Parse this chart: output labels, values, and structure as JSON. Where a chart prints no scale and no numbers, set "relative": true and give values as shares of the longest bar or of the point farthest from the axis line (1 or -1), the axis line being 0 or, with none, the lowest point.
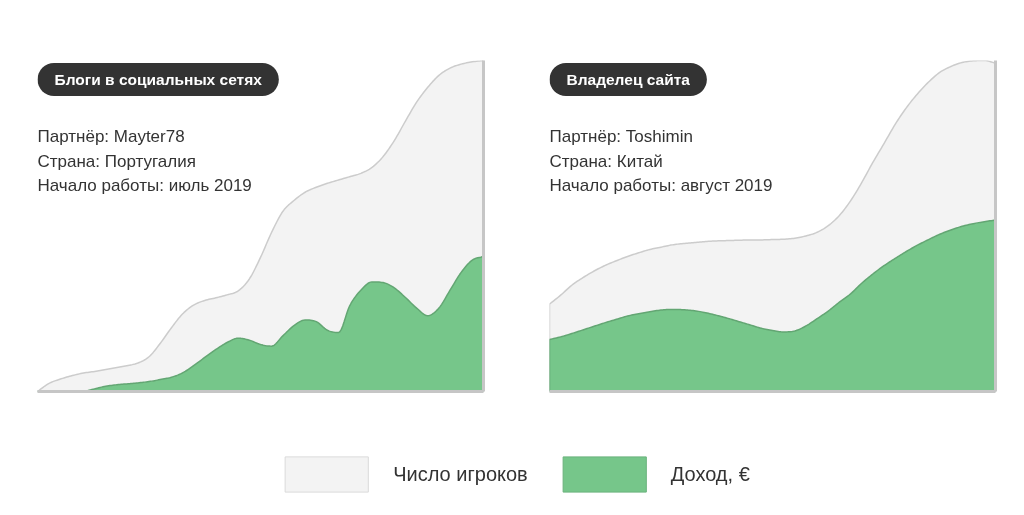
{
  "chart_data": [
    {
      "type": "area",
      "title": "Блоги в социальных сетях",
      "annotations": [
        "Партнёр: Mayter78",
        "Страна: Португалия",
        "Начало работы: июль 2019"
      ],
      "relative": true,
      "legend": "bottom",
      "categories": [
        null,
        null,
        null,
        null,
        null,
        null,
        null,
        null,
        null,
        null,
        null,
        null,
        null,
        null,
        null,
        null,
        null,
        null,
        null,
        null,
        null,
        null,
        null,
        null,
        null,
        null,
        null,
        null,
        null,
        null,
        null,
        null,
        null,
        null,
        null,
        null,
        null,
        null,
        null,
        null,
        null
      ],
      "series": [
        {
          "name": "Число игроков",
          "color": "#f3f3f3",
          "values": [
            0,
            0.024,
            0.037,
            0.047,
            0.055,
            0.06,
            0.066,
            0.072,
            0.078,
            0.086,
            0.105,
            0.145,
            0.192,
            0.234,
            0.261,
            0.275,
            0.283,
            0.292,
            0.304,
            0.34,
            0.405,
            0.481,
            0.544,
            0.577,
            0.602,
            0.617,
            0.629,
            0.639,
            0.649,
            0.659,
            0.677,
            0.71,
            0.758,
            0.817,
            0.874,
            0.919,
            0.955,
            0.977,
            0.989,
            0.996,
            1.0
          ]
        },
        {
          "name": "Доход, €",
          "color": "#76c68a",
          "values": [
            0,
            0,
            0,
            0,
            0,
            0.007,
            0.015,
            0.02,
            0.023,
            0.026,
            0.03,
            0.036,
            0.043,
            0.056,
            0.078,
            0.103,
            0.127,
            0.148,
            0.161,
            0.155,
            0.142,
            0.137,
            0.168,
            0.199,
            0.216,
            0.211,
            0.185,
            0.178,
            0.259,
            0.306,
            0.331,
            0.329,
            0.313,
            0.284,
            0.252,
            0.229,
            0.252,
            0.306,
            0.36,
            0.397,
            0.408
          ]
        }
      ]
    },
    {
      "type": "area",
      "title": "Владелец сайта",
      "annotations": [
        "Партнёр: Toshimin",
        "Страна: Китай",
        "Начало работы: август 2019"
      ],
      "relative": true,
      "categories": [
        null,
        null,
        null,
        null,
        null,
        null,
        null,
        null,
        null,
        null,
        null,
        null,
        null,
        null,
        null,
        null,
        null,
        null,
        null,
        null,
        null,
        null,
        null,
        null,
        null,
        null,
        null,
        null,
        null,
        null,
        null,
        null,
        null,
        null,
        null,
        null,
        null,
        null,
        null,
        null,
        null
      ],
      "series": [
        {
          "color": "#f3f3f3",
          "values": [
            0.264,
            0.291,
            0.321,
            0.344,
            0.364,
            0.381,
            0.395,
            0.408,
            0.419,
            0.429,
            0.436,
            0.443,
            0.447,
            0.45,
            0.453,
            0.455,
            0.456,
            0.457,
            0.458,
            0.458,
            0.459,
            0.46,
            0.463,
            0.47,
            0.481,
            0.501,
            0.532,
            0.576,
            0.631,
            0.692,
            0.749,
            0.807,
            0.857,
            0.899,
            0.935,
            0.964,
            0.982,
            0.994,
            0.999,
            1.0,
            0.992
          ]
        },
        {
          "color": "#76c68a",
          "values": [
            0.157,
            0.165,
            0.175,
            0.186,
            0.197,
            0.208,
            0.218,
            0.228,
            0.235,
            0.241,
            0.246,
            0.248,
            0.247,
            0.244,
            0.238,
            0.23,
            0.221,
            0.211,
            0.201,
            0.191,
            0.184,
            0.18,
            0.183,
            0.198,
            0.22,
            0.243,
            0.27,
            0.295,
            0.327,
            0.355,
            0.38,
            0.402,
            0.423,
            0.442,
            0.459,
            0.475,
            0.488,
            0.499,
            0.507,
            0.513,
            0.518
          ]
        }
      ]
    }
  ]
}
